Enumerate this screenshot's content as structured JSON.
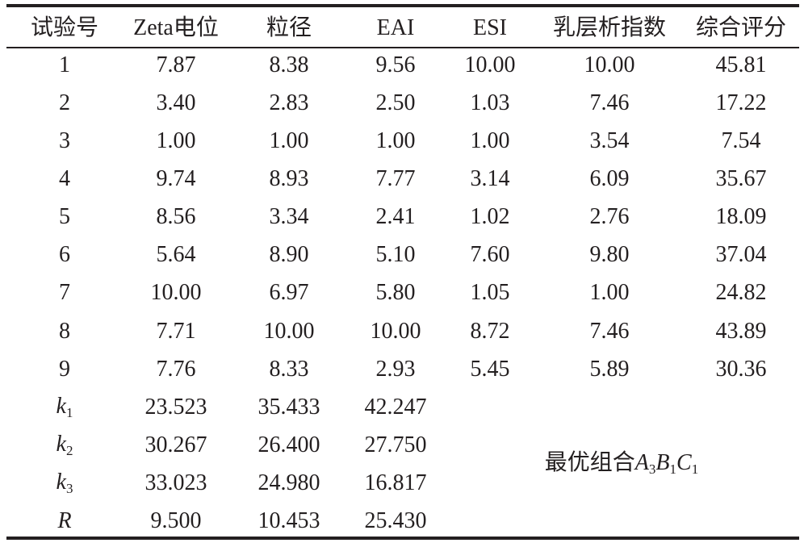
{
  "table": {
    "header": [
      "试验号",
      "Zeta电位",
      "粒径",
      "EAI",
      "ESI",
      "乳层析指数",
      "综合评分"
    ],
    "rows": [
      [
        "1",
        "7.87",
        "8.38",
        "9.56",
        "10.00",
        "10.00",
        "45.81"
      ],
      [
        "2",
        "3.40",
        "2.83",
        "2.50",
        "1.03",
        "7.46",
        "17.22"
      ],
      [
        "3",
        "1.00",
        "1.00",
        "1.00",
        "1.00",
        "3.54",
        "7.54"
      ],
      [
        "4",
        "9.74",
        "8.93",
        "7.77",
        "3.14",
        "6.09",
        "35.67"
      ],
      [
        "5",
        "8.56",
        "3.34",
        "2.41",
        "1.02",
        "2.76",
        "18.09"
      ],
      [
        "6",
        "5.64",
        "8.90",
        "5.10",
        "7.60",
        "9.80",
        "37.04"
      ],
      [
        "7",
        "10.00",
        "6.97",
        "5.80",
        "1.05",
        "1.00",
        "24.82"
      ],
      [
        "8",
        "7.71",
        "10.00",
        "10.00",
        "8.72",
        "7.46",
        "43.89"
      ],
      [
        "9",
        "7.76",
        "8.33",
        "2.93",
        "5.45",
        "5.89",
        "30.36"
      ]
    ],
    "factor_rows": [
      {
        "label": {
          "main": "k",
          "sub": "1"
        },
        "values": [
          "23.523",
          "35.433",
          "42.247"
        ]
      },
      {
        "label": {
          "main": "k",
          "sub": "2"
        },
        "values": [
          "30.267",
          "26.400",
          "27.750"
        ]
      },
      {
        "label": {
          "main": "k",
          "sub": "3"
        },
        "values": [
          "33.023",
          "24.980",
          "16.817"
        ]
      },
      {
        "label": {
          "main": "R"
        },
        "values": [
          "9.500",
          "10.453",
          "25.430"
        ]
      }
    ],
    "conclusion": {
      "text": "最优组合",
      "factors": [
        {
          "letter": "A",
          "sub": "3"
        },
        {
          "letter": "B",
          "sub": "1"
        },
        {
          "letter": "C",
          "sub": "1"
        }
      ]
    }
  }
}
